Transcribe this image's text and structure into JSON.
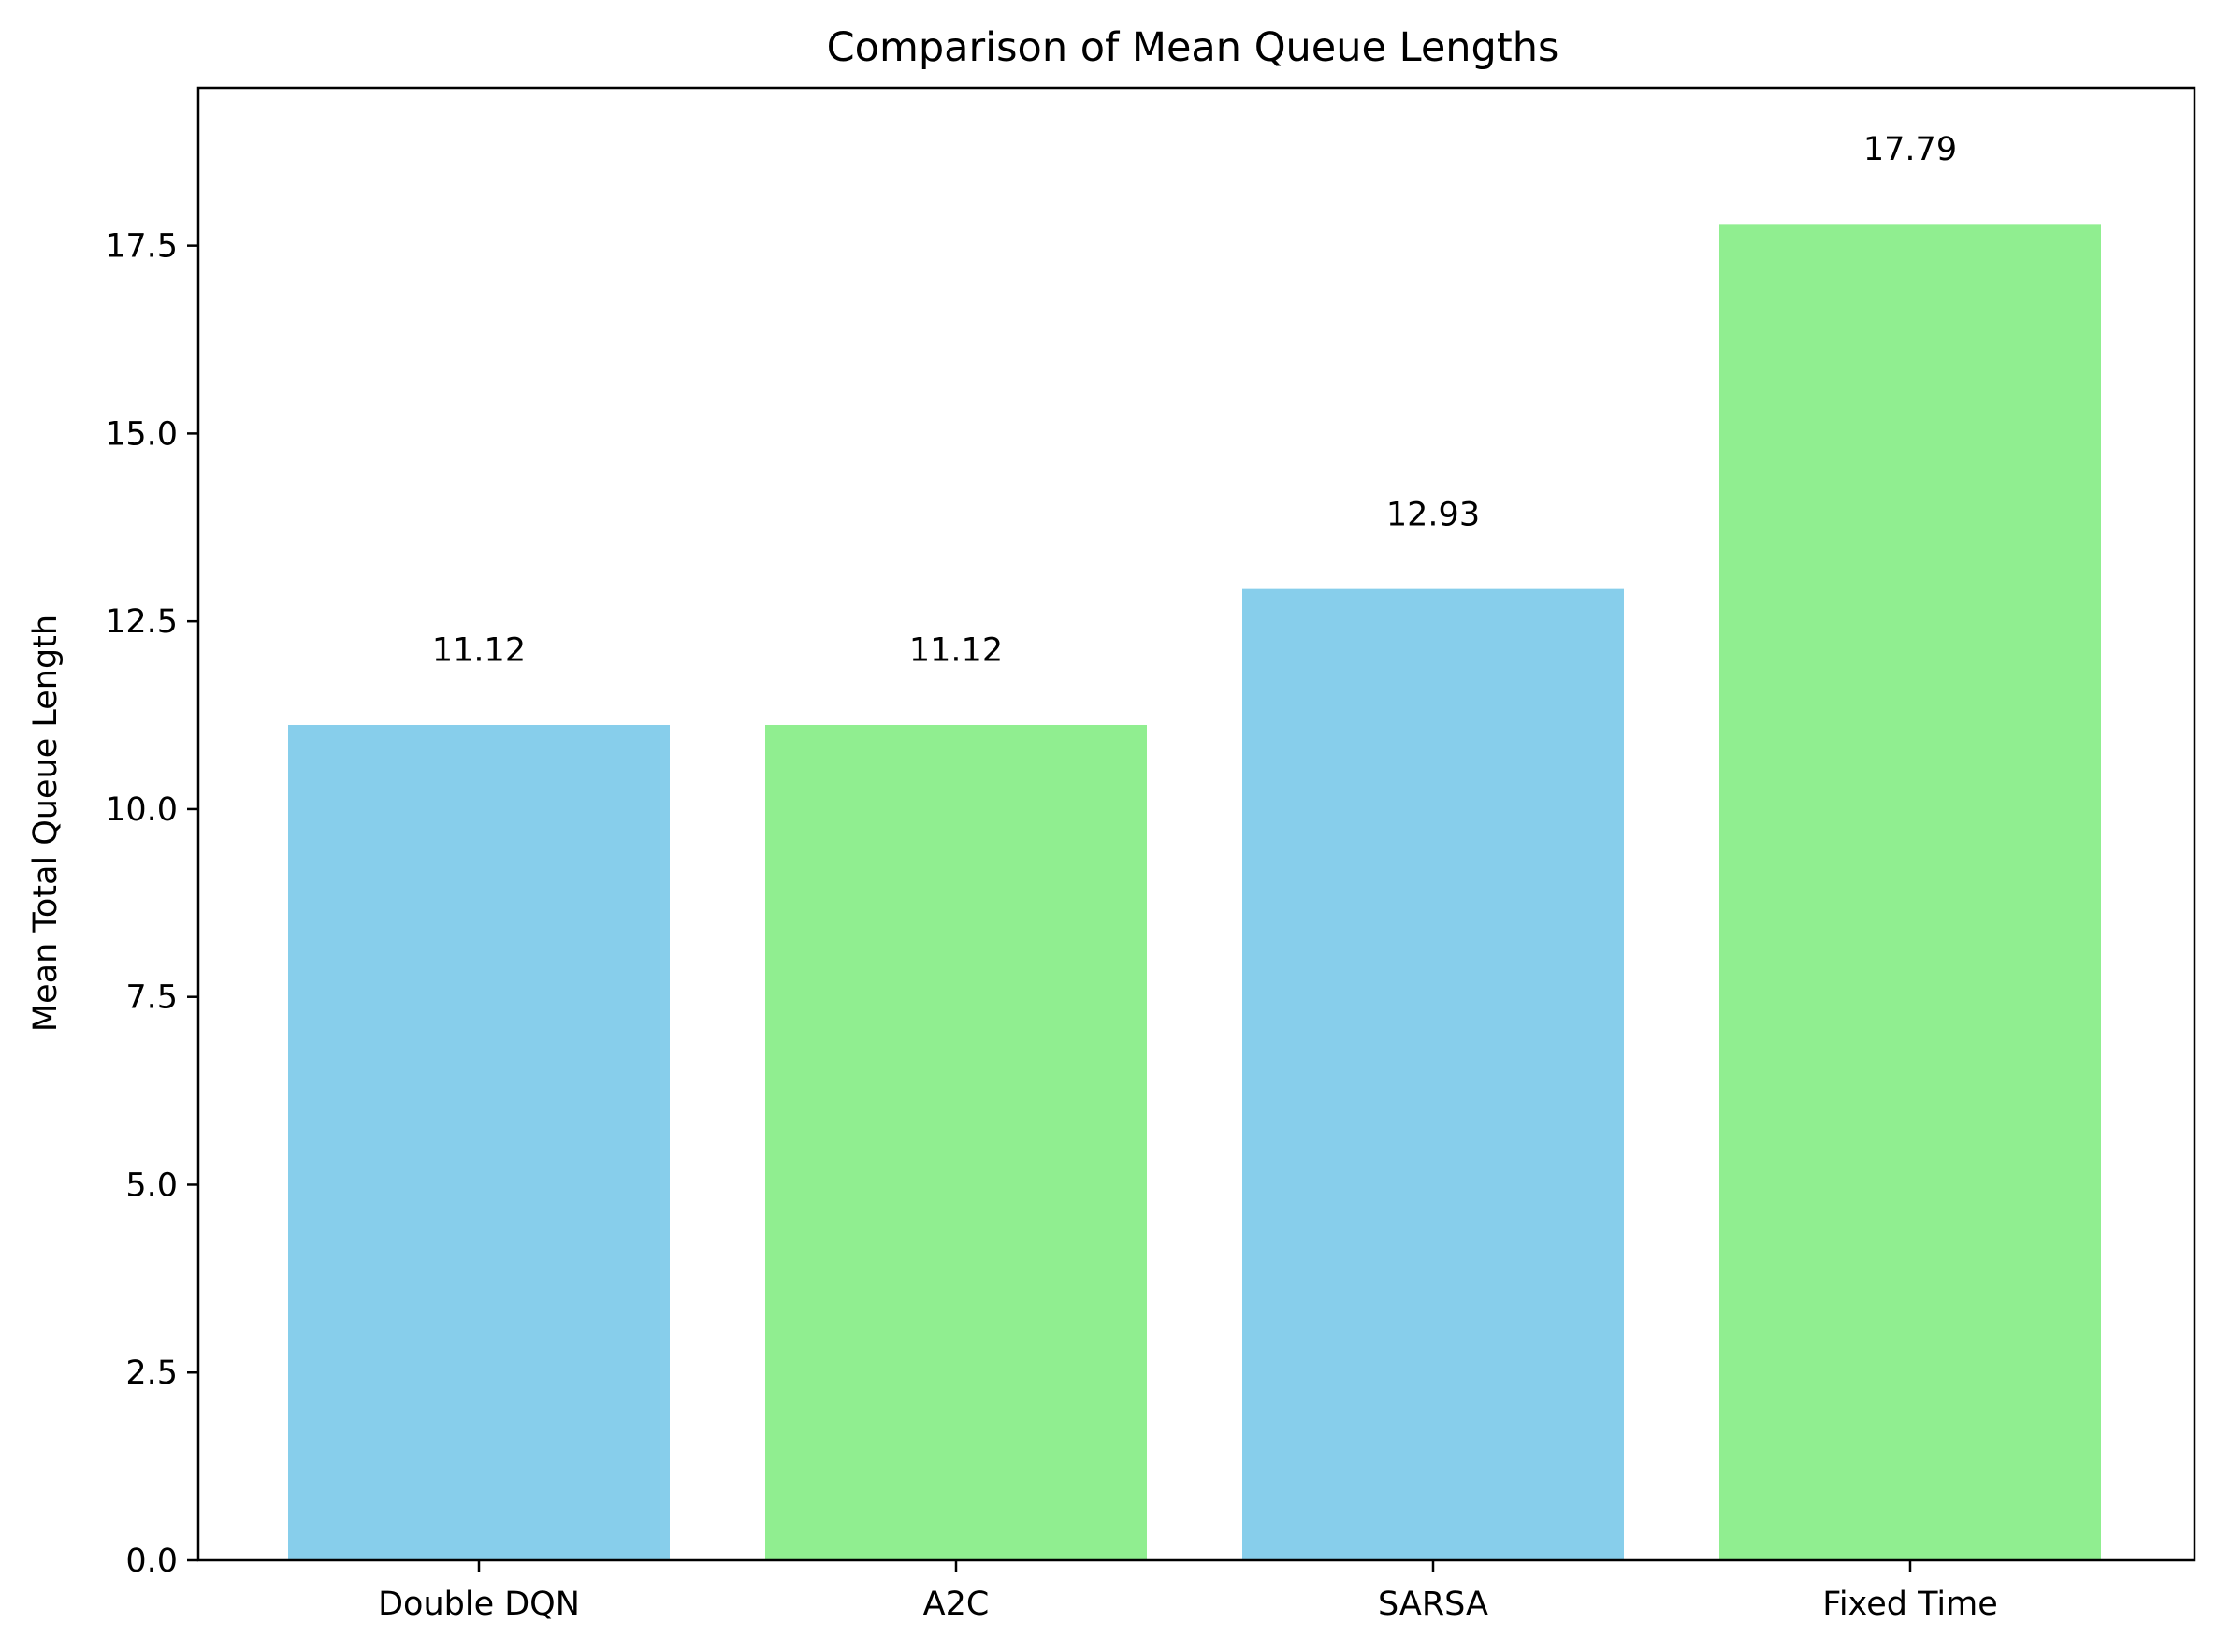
{
  "chart_data": {
    "type": "bar",
    "title": "Comparison of Mean Queue Lengths",
    "xlabel": "",
    "ylabel": "Mean Total Queue Length",
    "categories": [
      "Double DQN",
      "A2C",
      "SARSA",
      "Fixed Time"
    ],
    "values": [
      11.12,
      11.12,
      12.93,
      17.79
    ],
    "data_labels": [
      "11.12",
      "11.12",
      "12.93",
      "17.79"
    ],
    "bar_colors": [
      "#87CEEB",
      "#90EE90",
      "#87CEEB",
      "#90EE90"
    ],
    "ylim": [
      0,
      19.6
    ],
    "yticks": [
      0,
      2.5,
      5,
      7.5,
      10,
      12.5,
      15,
      17.5
    ],
    "ytick_labels": [
      "0.0",
      "2.5",
      "5.0",
      "7.5",
      "10.0",
      "12.5",
      "15.0",
      "17.5"
    ],
    "grid": false,
    "legend": "none"
  }
}
